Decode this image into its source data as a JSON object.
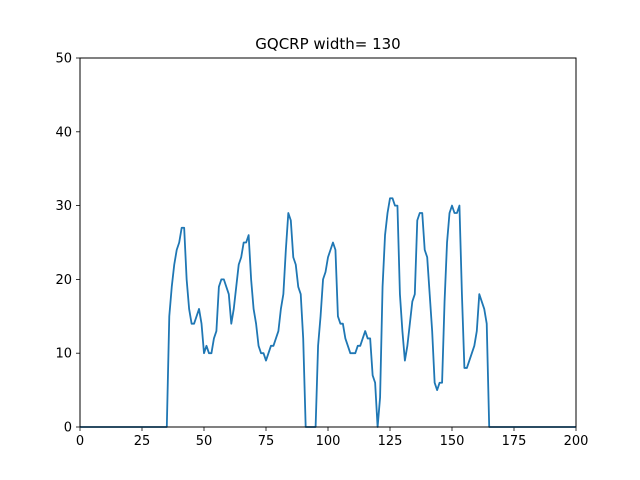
{
  "chart_data": {
    "type": "line",
    "title": "GQCRP width= 130",
    "xlabel": "",
    "ylabel": "",
    "xlim": [
      0,
      200
    ],
    "ylim": [
      0,
      50
    ],
    "xticks": [
      0,
      25,
      50,
      75,
      100,
      125,
      150,
      175,
      200
    ],
    "yticks": [
      0,
      10,
      20,
      30,
      40,
      50
    ],
    "grid": false,
    "line_color": "#1f77b4",
    "series": [
      {
        "x": [
          0,
          35,
          36,
          37,
          38,
          39,
          40,
          41,
          42,
          43,
          44,
          45,
          46,
          47,
          48,
          49,
          50,
          51,
          52,
          53,
          54,
          55,
          56,
          57,
          58,
          59,
          60,
          61,
          62,
          63,
          64,
          65,
          66,
          67,
          68,
          69,
          70,
          71,
          72,
          73,
          74,
          75,
          76,
          77,
          78,
          79,
          80,
          81,
          82,
          83,
          84,
          85,
          86,
          87,
          88,
          89,
          90,
          91,
          92,
          93,
          94,
          95,
          96,
          97,
          98,
          99,
          100,
          101,
          102,
          103,
          104,
          105,
          106,
          107,
          108,
          109,
          110,
          111,
          112,
          113,
          114,
          115,
          116,
          117,
          118,
          119,
          120,
          121,
          122,
          123,
          124,
          125,
          126,
          127,
          128,
          129,
          130,
          131,
          132,
          133,
          134,
          135,
          136,
          137,
          138,
          139,
          140,
          141,
          142,
          143,
          144,
          145,
          146,
          147,
          148,
          149,
          150,
          151,
          152,
          153,
          154,
          155,
          156,
          157,
          158,
          159,
          160,
          161,
          162,
          163,
          164,
          165,
          200
        ],
        "values": [
          0,
          0,
          15,
          19,
          22,
          24,
          25,
          27,
          27,
          20,
          16,
          14,
          14,
          15,
          16,
          14,
          10,
          11,
          10,
          10,
          12,
          13,
          19,
          20,
          20,
          19,
          18,
          14,
          16,
          19,
          22,
          23,
          25,
          25,
          26,
          20,
          16,
          14,
          11,
          10,
          10,
          9,
          10,
          11,
          11,
          12,
          13,
          16,
          18,
          24,
          29,
          28,
          23,
          22,
          19,
          18,
          12,
          0,
          0,
          0,
          0,
          0,
          11,
          15,
          20,
          21,
          23,
          24,
          25,
          24,
          15,
          14,
          14,
          12,
          11,
          10,
          10,
          10,
          11,
          11,
          12,
          13,
          12,
          12,
          7,
          6,
          0,
          4,
          19,
          26,
          29,
          31,
          31,
          30,
          30,
          18,
          13,
          9,
          11,
          14,
          17,
          18,
          28,
          29,
          29,
          24,
          23,
          18,
          13,
          6,
          5,
          6,
          6,
          17,
          25,
          29,
          30,
          29,
          29,
          30,
          18,
          8,
          8,
          9,
          10,
          11,
          13,
          18,
          17,
          16,
          14,
          0,
          0
        ]
      }
    ]
  }
}
